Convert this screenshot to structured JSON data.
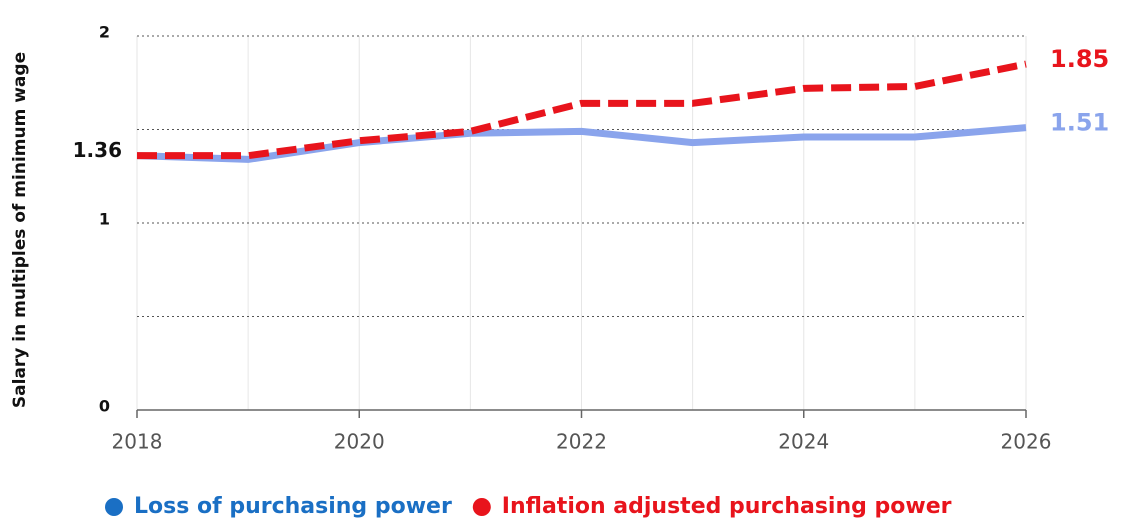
{
  "chart_data": {
    "type": "line",
    "y_label": "Salary in multiples of minimum wage",
    "x": [
      2018,
      2019,
      2020,
      2021,
      2022,
      2023,
      2024,
      2025,
      2026
    ],
    "xlim": [
      2018,
      2026
    ],
    "xticks": [
      2018,
      2020,
      2022,
      2024,
      2026
    ],
    "ylim": [
      0,
      2
    ],
    "yticks": [
      0,
      1,
      2
    ],
    "yminor": [
      0.5,
      1.5
    ],
    "grid": true,
    "series": [
      {
        "name": "Loss of purchasing power",
        "color": "#8aa4ec",
        "legend_color": "#1a6fc4",
        "dashed": false,
        "values": [
          1.36,
          1.34,
          1.43,
          1.48,
          1.49,
          1.43,
          1.46,
          1.46,
          1.51
        ]
      },
      {
        "name": "Inflation adjusted purchasing power",
        "color": "#e8141c",
        "legend_color": "#e8141c",
        "dashed": true,
        "values": [
          1.36,
          1.36,
          1.44,
          1.49,
          1.64,
          1.64,
          1.72,
          1.73,
          1.85
        ]
      }
    ]
  }
}
